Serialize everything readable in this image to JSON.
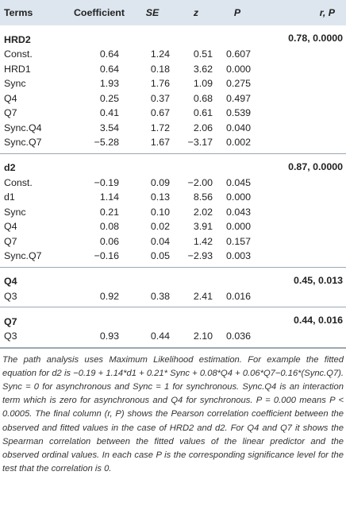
{
  "table": {
    "headers": [
      "Terms",
      "Coefficient",
      "SE",
      "z",
      "P",
      "r, P"
    ],
    "groups": [
      {
        "name": "HRD2",
        "r_p": "0.78, 0.0000",
        "rows": [
          {
            "term": "Const.",
            "coef": "0.64",
            "se": "1.24",
            "z": "0.51",
            "p": "0.607"
          },
          {
            "term": "HRD1",
            "coef": "0.64",
            "se": "0.18",
            "z": "3.62",
            "p": "0.000"
          },
          {
            "term": "Sync",
            "coef": "1.93",
            "se": "1.76",
            "z": "1.09",
            "p": "0.275"
          },
          {
            "term": "Q4",
            "coef": "0.25",
            "se": "0.37",
            "z": "0.68",
            "p": "0.497"
          },
          {
            "term": "Q7",
            "coef": "0.41",
            "se": "0.67",
            "z": "0.61",
            "p": "0.539"
          },
          {
            "term": "Sync.Q4",
            "coef": "3.54",
            "se": "1.72",
            "z": "2.06",
            "p": "0.040"
          },
          {
            "term": "Sync.Q7",
            "coef": "−5.28",
            "se": "1.67",
            "z": "−3.17",
            "p": "0.002"
          }
        ]
      },
      {
        "name": "d2",
        "r_p": "0.87, 0.0000",
        "rows": [
          {
            "term": "Const.",
            "coef": "−0.19",
            "se": "0.09",
            "z": "−2.00",
            "p": "0.045"
          },
          {
            "term": "d1",
            "coef": "1.14",
            "se": "0.13",
            "z": "8.56",
            "p": "0.000"
          },
          {
            "term": "Sync",
            "coef": "0.21",
            "se": "0.10",
            "z": "2.02",
            "p": "0.043"
          },
          {
            "term": "Q4",
            "coef": "0.08",
            "se": "0.02",
            "z": "3.91",
            "p": "0.000"
          },
          {
            "term": "Q7",
            "coef": "0.06",
            "se": "0.04",
            "z": "1.42",
            "p": "0.157"
          },
          {
            "term": "Sync.Q7",
            "coef": "−0.16",
            "se": "0.05",
            "z": "−2.93",
            "p": "0.003"
          }
        ]
      },
      {
        "name": "Q4",
        "r_p": "0.45, 0.013",
        "rows": [
          {
            "term": "Q3",
            "coef": "0.92",
            "se": "0.38",
            "z": "2.41",
            "p": "0.016"
          }
        ]
      },
      {
        "name": "Q7",
        "r_p": "0.44, 0.016",
        "rows": [
          {
            "term": "Q3",
            "coef": "0.93",
            "se": "0.44",
            "z": "2.10",
            "p": "0.036"
          }
        ]
      }
    ]
  },
  "footnote": "The path analysis uses Maximum Likelihood estimation. For example the fitted equation for d2 is −0.19 + 1.14*d1 + 0.21* Sync + 0.08*Q4 + 0.06*Q7−0.16*(Sync.Q7). Sync = 0 for asynchronous and Sync = 1 for synchronous. Sync.Q4 is an interaction term which is zero for asynchronous and Q4 for synchronous. P = 0.000 means P < 0.0005. The final column (r, P) shows the Pearson correlation coefficient between the observed and fitted values in the case of HRD2 and d2. For Q4 and Q7 it shows the Spearman correlation between the fitted values of the linear predictor and the observed ordinal values. In each case P is the corresponding significance level for the test that the correlation is 0."
}
